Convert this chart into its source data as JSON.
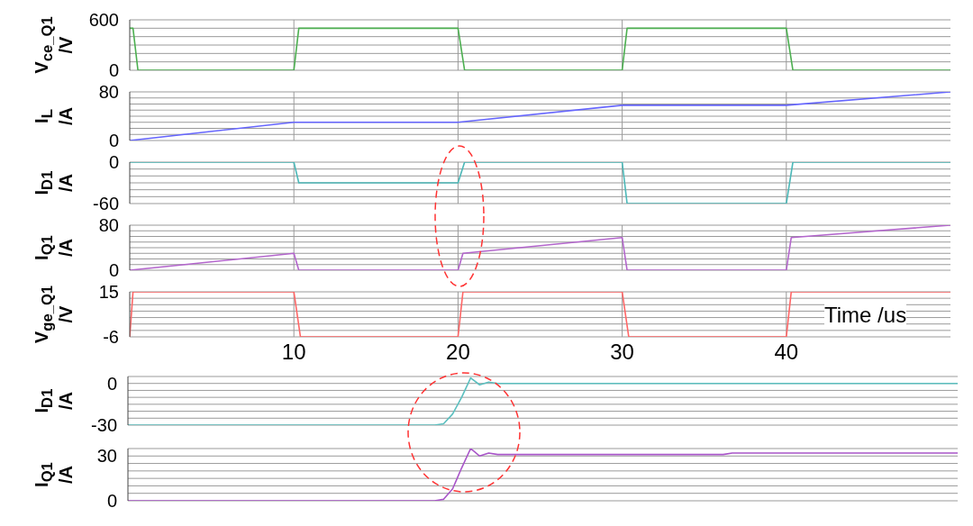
{
  "chart_data": [
    {
      "type": "line",
      "ylabel": "V$_{ce_Q1}$ /V",
      "xlim": [
        0,
        50
      ],
      "xticks": [
        10,
        20,
        30,
        40
      ],
      "ylim": [
        0,
        600
      ],
      "yticks": [
        0,
        {
          "value": 100,
          "label": null
        },
        {
          "value": 200,
          "label": null
        },
        {
          "value": 300,
          "label": null
        },
        {
          "value": 400,
          "label": null
        },
        {
          "value": 500,
          "label": null
        },
        600
      ],
      "grid": true,
      "tick_labels": "y",
      "series": [
        {
          "color": "#4caf50",
          "x": [
            0,
            0.2,
            0.5,
            10,
            10.3,
            20,
            20.4,
            30,
            30.3,
            40,
            40.4,
            50
          ],
          "values": [
            500,
            500,
            0,
            0,
            500,
            500,
            0,
            0,
            500,
            500,
            0,
            0
          ]
        }
      ]
    },
    {
      "type": "line",
      "ylabel": "I$_{L}$ /A",
      "xlim": [
        0,
        50
      ],
      "xticks": [
        10,
        20,
        30,
        40
      ],
      "ylim": [
        0,
        80
      ],
      "yticks": [
        0,
        {
          "value": 10,
          "label": null
        },
        {
          "value": 20,
          "label": null
        },
        {
          "value": 30,
          "label": null
        },
        {
          "value": 40,
          "label": null
        },
        {
          "value": 50,
          "label": null
        },
        {
          "value": 60,
          "label": null
        },
        {
          "value": 70,
          "label": null
        },
        80
      ],
      "grid": true,
      "tick_labels": "y",
      "series": [
        {
          "color": "#6666ff",
          "x": [
            0,
            10,
            20,
            30,
            40,
            50
          ],
          "values": [
            0,
            30,
            30,
            58,
            58,
            80
          ]
        }
      ]
    },
    {
      "type": "line",
      "ylabel": "I$_{D1}$ /A",
      "xlim": [
        0,
        50
      ],
      "xticks": [
        10,
        20,
        30,
        40
      ],
      "ylim": [
        -60,
        0
      ],
      "yticks": [
        -60,
        {
          "value": -50,
          "label": null
        },
        {
          "value": -40,
          "label": null
        },
        {
          "value": -30,
          "label": null
        },
        {
          "value": -20,
          "label": null
        },
        {
          "value": -10,
          "label": null
        },
        0
      ],
      "grid": true,
      "tick_labels": "y",
      "series": [
        {
          "color": "#4db8b8",
          "x": [
            0,
            10,
            10.3,
            20,
            20.4,
            30,
            30.3,
            40,
            40.4,
            50
          ],
          "values": [
            0,
            0,
            -30,
            -30,
            0,
            0,
            -60,
            -60,
            0,
            0
          ]
        }
      ]
    },
    {
      "type": "line",
      "ylabel": "I$_{Q1}$ /A",
      "xlim": [
        0,
        50
      ],
      "xticks": [
        10,
        20,
        30,
        40
      ],
      "ylim": [
        0,
        80
      ],
      "yticks": [
        0,
        {
          "value": 10,
          "label": null
        },
        {
          "value": 20,
          "label": null
        },
        {
          "value": 30,
          "label": null
        },
        {
          "value": 40,
          "label": null
        },
        {
          "value": 50,
          "label": null
        },
        {
          "value": 60,
          "label": null
        },
        {
          "value": 70,
          "label": null
        },
        80
      ],
      "grid": true,
      "tick_labels": "y",
      "series": [
        {
          "color": "#b366cc",
          "x": [
            0,
            10,
            10.3,
            20,
            20.3,
            30,
            30.3,
            40,
            40.3,
            50
          ],
          "values": [
            0,
            30,
            0,
            0,
            30,
            58,
            0,
            0,
            58,
            80
          ]
        }
      ]
    },
    {
      "type": "line",
      "ylabel": "V$_{ge_Q1}$ /V",
      "xlim": [
        0,
        50
      ],
      "xticks": [
        10,
        20,
        30,
        40
      ],
      "ylim": [
        -6,
        15
      ],
      "yticks": [
        -6,
        {
          "value": -3,
          "label": null
        },
        {
          "value": 0,
          "label": null
        },
        {
          "value": 3,
          "label": null
        },
        {
          "value": 6,
          "label": null
        },
        {
          "value": 9,
          "label": null
        },
        {
          "value": 12,
          "label": null
        },
        15
      ],
      "grid": true,
      "annotations": [
        "Time /us"
      ],
      "series": [
        {
          "color": "#ff6666",
          "x": [
            0,
            0.2,
            10,
            10.4,
            20,
            20.3,
            30,
            30.4,
            40,
            40.3,
            50
          ],
          "values": [
            -6,
            15,
            15,
            -6,
            -6,
            15,
            15,
            -6,
            -6,
            15,
            15
          ]
        }
      ]
    },
    {
      "type": "line",
      "ylabel": "I$_{D1}$ /A",
      "categories": [
        null,
        null,
        null,
        null,
        null,
        null,
        null,
        null,
        null,
        null,
        null,
        null,
        null,
        null,
        null,
        null,
        null,
        null,
        null,
        null,
        null,
        null,
        null,
        null,
        null,
        null,
        null,
        null,
        null,
        null,
        null,
        null,
        null,
        null,
        null,
        null,
        null,
        null,
        null,
        null,
        null,
        null,
        null,
        null,
        null,
        null,
        null,
        null,
        null,
        null,
        null,
        null,
        null,
        null,
        null,
        null,
        null,
        null,
        null,
        null,
        null,
        null,
        null,
        null,
        null,
        null,
        null,
        null,
        null,
        null,
        null,
        null,
        null,
        null,
        null,
        null,
        null,
        null,
        null,
        null,
        null,
        null,
        null,
        null,
        null,
        null,
        null,
        null,
        null,
        null,
        null,
        null,
        null
      ],
      "ylim": [
        -30,
        5
      ],
      "yticks": [
        -30,
        {
          "value": -25,
          "label": null
        },
        {
          "value": -20,
          "label": null
        },
        {
          "value": -15,
          "label": null
        },
        {
          "value": -10,
          "label": null
        },
        {
          "value": -5,
          "label": null
        },
        0,
        {
          "value": 5,
          "label": null
        }
      ],
      "grid": "y",
      "tick_labels": "y",
      "series": [
        {
          "color": "#5cbfbf",
          "values": [
            -30,
            -30,
            -30,
            -30,
            -30,
            -30,
            -30,
            -30,
            -30,
            -30,
            -30,
            -30,
            -30,
            -30,
            -30,
            -30,
            -30,
            -30,
            -30,
            -30,
            -30,
            -30,
            -30,
            -30,
            -30,
            -30,
            -30,
            -30,
            -30,
            -30,
            -30,
            -30,
            -30,
            -30,
            -30,
            -29,
            -22,
            -10,
            4,
            -1,
            1,
            0,
            0,
            0,
            0,
            0,
            0,
            0,
            0,
            0,
            0,
            0,
            0,
            0,
            0,
            0,
            0,
            0,
            0,
            0,
            0,
            0,
            0,
            0,
            0,
            0,
            0,
            0,
            0,
            0,
            0,
            0,
            0,
            0,
            0,
            0,
            0,
            0,
            0,
            0,
            0,
            0,
            0,
            0,
            0,
            0,
            0,
            0,
            0,
            0,
            0,
            0,
            0
          ]
        }
      ]
    },
    {
      "type": "line",
      "ylabel": "I$_{Q1}$ /A",
      "categories": [
        null,
        null,
        null,
        null,
        null,
        null,
        null,
        null,
        null,
        null,
        null,
        null,
        null,
        null,
        null,
        null,
        null,
        null,
        null,
        null,
        null,
        null,
        null,
        null,
        null,
        null,
        null,
        null,
        null,
        null,
        null,
        null,
        null,
        null,
        null,
        null,
        null,
        null,
        null,
        null,
        null,
        null,
        null,
        null,
        null,
        null,
        null,
        null,
        null,
        null,
        null,
        null,
        null,
        null,
        null,
        null,
        null,
        null,
        null,
        null,
        null,
        null,
        null,
        null,
        null,
        null,
        null,
        null,
        null,
        null,
        null,
        null,
        null,
        null,
        null,
        null,
        null,
        null,
        null,
        null,
        null,
        null,
        null,
        null,
        null,
        null,
        null,
        null,
        null,
        null,
        null,
        null,
        null
      ],
      "ylim": [
        0,
        35
      ],
      "yticks": [
        0,
        {
          "value": 5,
          "label": null
        },
        {
          "value": 10,
          "label": null
        },
        {
          "value": 15,
          "label": null
        },
        {
          "value": 20,
          "label": null
        },
        {
          "value": 25,
          "label": null
        },
        30,
        {
          "value": 35,
          "label": null
        }
      ],
      "grid": "y",
      "tick_labels": "y",
      "series": [
        {
          "color": "#a855c8",
          "values": [
            0,
            0,
            0,
            0,
            0,
            0,
            0,
            0,
            0,
            0,
            0,
            0,
            0,
            0,
            0,
            0,
            0,
            0,
            0,
            0,
            0,
            0,
            0,
            0,
            0,
            0,
            0,
            0,
            0,
            0,
            0,
            0,
            0,
            0,
            0,
            1,
            8,
            22,
            35,
            30,
            32,
            31,
            31,
            31,
            31,
            31,
            31,
            31,
            31,
            31,
            31,
            31,
            31,
            31,
            31,
            31,
            31,
            31,
            31,
            31,
            31,
            31,
            31,
            31,
            31,
            31,
            31,
            32,
            32,
            32,
            32,
            32,
            32,
            32,
            32,
            32,
            32,
            32,
            32,
            32,
            32,
            32,
            32,
            32,
            32,
            32,
            32,
            32,
            32,
            32,
            32,
            32,
            32
          ]
        }
      ]
    }
  ]
}
